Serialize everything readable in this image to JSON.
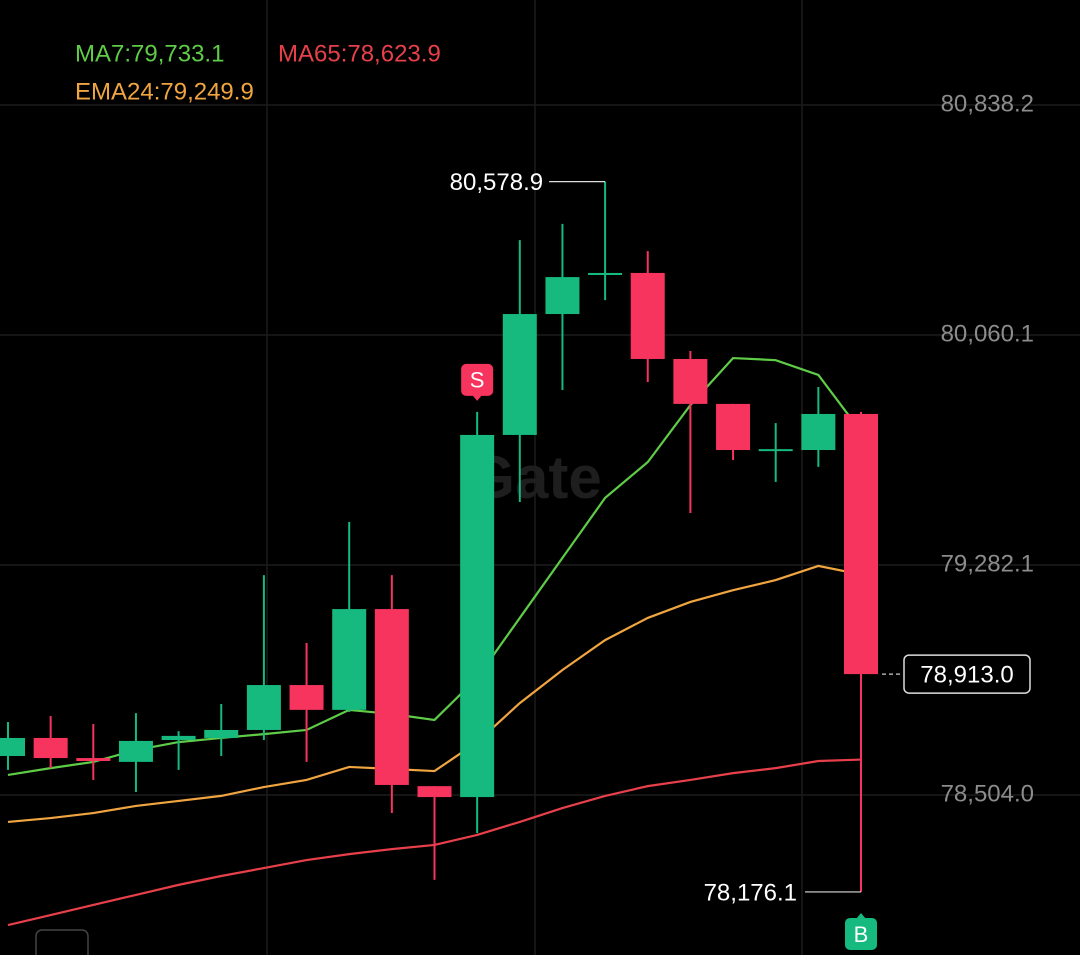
{
  "chart_data": {
    "type": "candlestick",
    "watermark": "Gate",
    "open": [
      78636,
      78697,
      78629,
      78616,
      78690,
      78697,
      78724,
      78876,
      78792,
      79133,
      78534,
      78497,
      79722,
      80131,
      80263,
      80270,
      79979,
      79827,
      79668,
      79671,
      79793
    ],
    "high": [
      78751,
      78771,
      78744,
      78781,
      78720,
      78812,
      79248,
      79018,
      79428,
      79248,
      78534,
      79800,
      80381,
      80436,
      80578.9,
      80344,
      80006,
      79827,
      79762,
      79884,
      79800
    ],
    "low": [
      78589,
      78595,
      78555,
      78514,
      78589,
      78636,
      78690,
      78616,
      78785,
      78443,
      78217,
      78375,
      79495,
      79874,
      80178,
      79901,
      79458,
      79637,
      79563,
      79614,
      78176.1
    ],
    "close": [
      78697,
      78629,
      78619,
      78687,
      78704,
      78724,
      78876,
      78792,
      79133,
      78538,
      78497,
      79722,
      80131,
      80256,
      80270,
      79979,
      79827,
      79671,
      79674,
      79793,
      78913.0
    ],
    "up_color": "#16b97e",
    "down_color": "#f6345d",
    "high_label": "80,578.9",
    "low_label": "78,176.1",
    "close_label": "78,913.0",
    "signals": [
      null,
      null,
      null,
      null,
      null,
      null,
      null,
      null,
      null,
      null,
      null,
      "S",
      null,
      null,
      null,
      null,
      null,
      null,
      null,
      null,
      "B"
    ],
    "series": [
      {
        "name": "MA7:79,733.1",
        "color": "#5fcc48",
        "values": [
          78572,
          78595,
          78616,
          78656,
          78683,
          78697,
          78710,
          78724,
          78792,
          78778,
          78758,
          78900,
          79103,
          79306,
          79509,
          79630,
          79823,
          79982,
          79975,
          79925,
          79733.1
        ]
      },
      {
        "name": "MA65:78,623.9",
        "color": "#e8404a",
        "values": [
          78064,
          78098,
          78132,
          78166,
          78200,
          78230,
          78257,
          78284,
          78304,
          78321,
          78335,
          78369,
          78413,
          78460,
          78501,
          78534,
          78555,
          78578,
          78595,
          78619,
          78623.9
        ]
      },
      {
        "name": "EMA24:79,249.9",
        "color": "#f0a540",
        "values": [
          78413,
          78426,
          78443,
          78467,
          78484,
          78501,
          78531,
          78555,
          78599,
          78592,
          78585,
          78683,
          78815,
          78927,
          79028,
          79103,
          79157,
          79197,
          79231,
          79279,
          79249.9
        ]
      }
    ],
    "ylim": [
      77962.8,
      81193.3
    ],
    "yticks": [
      {
        "value": 78504.0,
        "label": "78,504.0"
      },
      {
        "value": 79282.1,
        "label": "79,282.1"
      },
      {
        "value": 80060.1,
        "label": "80,060.1"
      },
      {
        "value": 80838.2,
        "label": "80,838.2"
      }
    ],
    "grid": true
  }
}
